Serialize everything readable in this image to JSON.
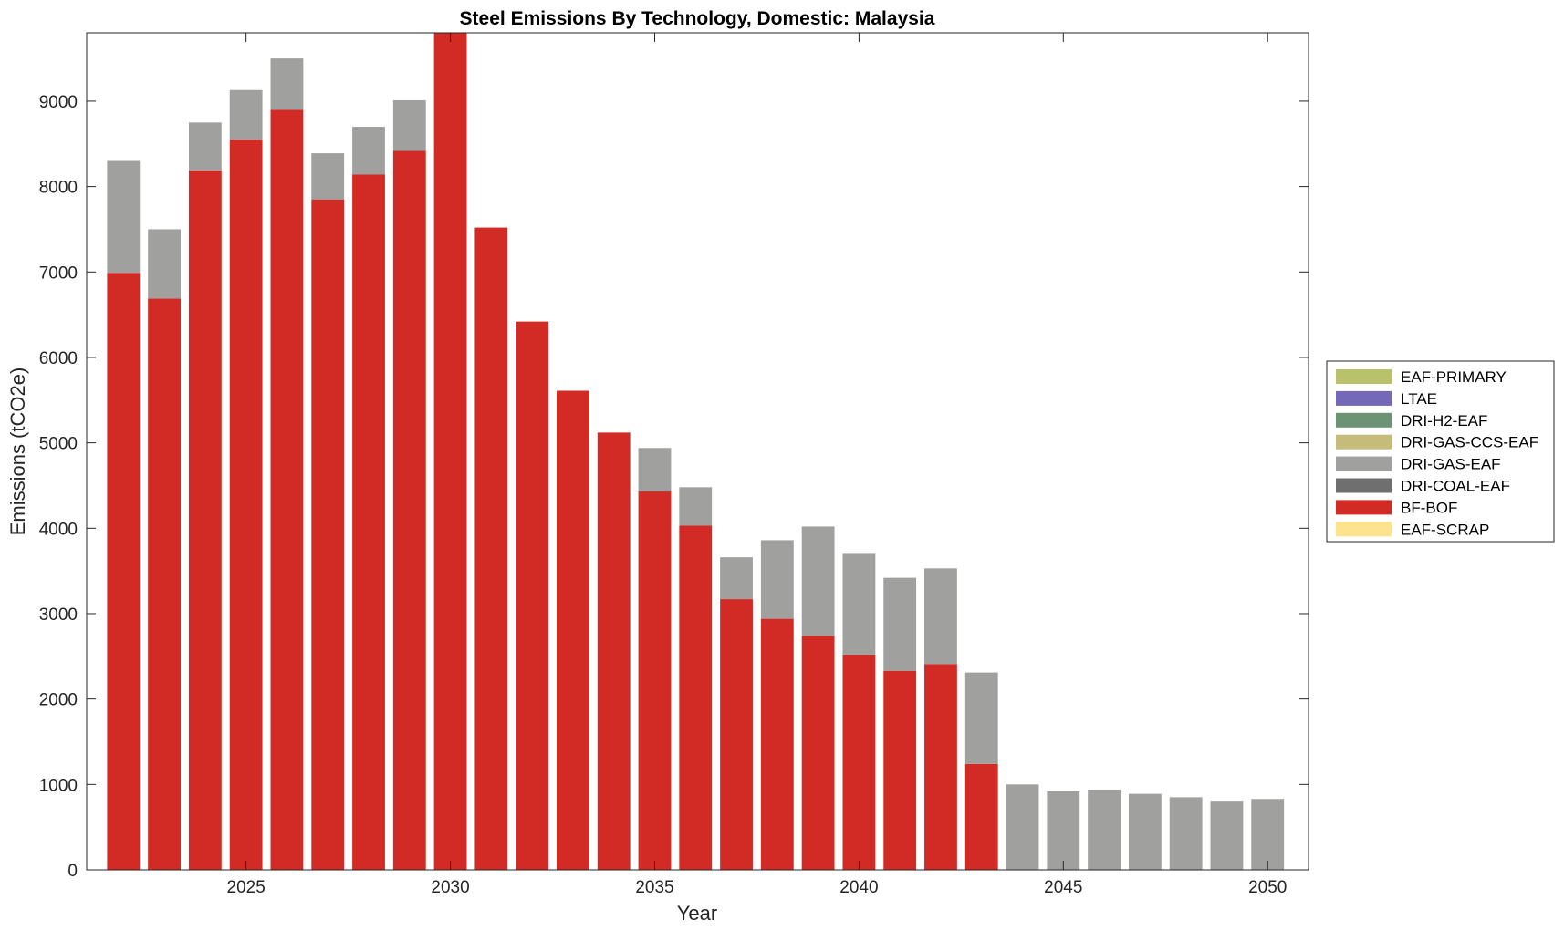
{
  "chart_data": {
    "type": "bar",
    "stacked": true,
    "title": "Steel Emissions By Technology, Domestic: Malaysia",
    "xlabel": "Year",
    "ylabel": "Emissions (tCO2e)",
    "ylim": [
      0,
      9800
    ],
    "xlim": [
      2021.1,
      2051.0
    ],
    "x_ticks": [
      2025,
      2030,
      2035,
      2040,
      2045,
      2050
    ],
    "y_ticks": [
      0,
      1000,
      2000,
      3000,
      4000,
      5000,
      6000,
      7000,
      8000,
      9000
    ],
    "grid": false,
    "legend_position": "right",
    "x": [
      2022,
      2023,
      2024,
      2025,
      2026,
      2027,
      2028,
      2029,
      2030,
      2031,
      2032,
      2033,
      2034,
      2035,
      2036,
      2037,
      2038,
      2039,
      2040,
      2041,
      2042,
      2043,
      2044,
      2045,
      2046,
      2047,
      2048,
      2049,
      2050
    ],
    "series": [
      {
        "name": "EAF-SCRAP",
        "color": "#fde38d",
        "values": [
          0,
          0,
          0,
          0,
          0,
          0,
          0,
          0,
          0,
          0,
          0,
          0,
          0,
          0,
          0,
          0,
          0,
          0,
          0,
          0,
          0,
          0,
          0,
          0,
          0,
          0,
          0,
          0,
          0
        ]
      },
      {
        "name": "BF-BOF",
        "color": "#d22b26",
        "values": [
          6990,
          6690,
          8190,
          8550,
          8900,
          7850,
          8140,
          8420,
          9800,
          7520,
          6420,
          5610,
          5120,
          4430,
          4030,
          3170,
          2940,
          2740,
          2520,
          2330,
          2410,
          1240,
          0,
          0,
          0,
          0,
          0,
          0,
          0
        ]
      },
      {
        "name": "DRI-COAL-EAF",
        "color": "#6f6f6f",
        "values": [
          0,
          0,
          0,
          0,
          0,
          0,
          0,
          0,
          0,
          0,
          0,
          0,
          0,
          0,
          0,
          0,
          0,
          0,
          0,
          0,
          0,
          0,
          0,
          0,
          0,
          0,
          0,
          0,
          0
        ]
      },
      {
        "name": "DRI-GAS-EAF",
        "color": "#a0a09f",
        "values": [
          1310,
          810,
          560,
          580,
          600,
          540,
          560,
          590,
          0,
          0,
          0,
          0,
          0,
          510,
          450,
          490,
          920,
          1280,
          1180,
          1090,
          1120,
          1070,
          1000,
          920,
          940,
          890,
          850,
          810,
          830
        ]
      },
      {
        "name": "DRI-GAS-CCS-EAF",
        "color": "#c5bb7b",
        "values": [
          0,
          0,
          0,
          0,
          0,
          0,
          0,
          0,
          0,
          0,
          0,
          0,
          0,
          0,
          0,
          0,
          0,
          0,
          0,
          0,
          0,
          0,
          0,
          0,
          0,
          0,
          0,
          0,
          0
        ]
      },
      {
        "name": "DRI-H2-EAF",
        "color": "#6c9474",
        "values": [
          0,
          0,
          0,
          0,
          0,
          0,
          0,
          0,
          0,
          0,
          0,
          0,
          0,
          0,
          0,
          0,
          0,
          0,
          0,
          0,
          0,
          0,
          0,
          0,
          0,
          0,
          0,
          0,
          0
        ]
      },
      {
        "name": "LTAE",
        "color": "#7468b8",
        "values": [
          0,
          0,
          0,
          0,
          0,
          0,
          0,
          0,
          0,
          0,
          0,
          0,
          0,
          0,
          0,
          0,
          0,
          0,
          0,
          0,
          0,
          0,
          0,
          0,
          0,
          0,
          0,
          0,
          0
        ]
      },
      {
        "name": "EAF-PRIMARY",
        "color": "#b9c26b",
        "values": [
          0,
          0,
          0,
          0,
          0,
          0,
          0,
          0,
          0,
          0,
          0,
          0,
          0,
          0,
          0,
          0,
          0,
          0,
          0,
          0,
          0,
          0,
          0,
          0,
          0,
          0,
          0,
          0,
          0
        ]
      }
    ],
    "legend_order": [
      "EAF-PRIMARY",
      "LTAE",
      "DRI-H2-EAF",
      "DRI-GAS-CCS-EAF",
      "DRI-GAS-EAF",
      "DRI-COAL-EAF",
      "BF-BOF",
      "EAF-SCRAP"
    ]
  }
}
